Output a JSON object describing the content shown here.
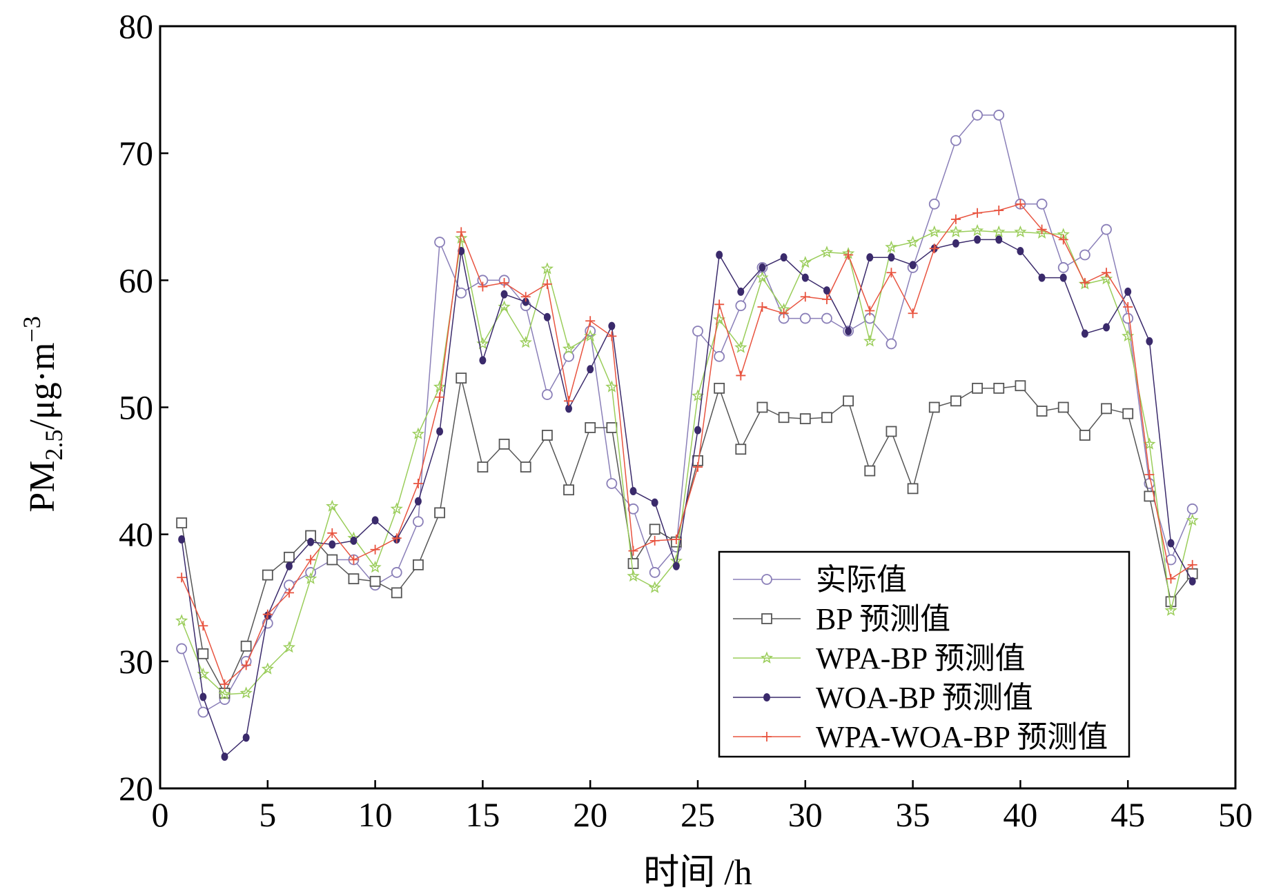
{
  "chart_data": {
    "type": "line",
    "title": "",
    "xlabel": "时间 /h",
    "ylabel": "PM2.5/μg·m−3",
    "ylabel_parts": {
      "main": "PM",
      "sub": "2.5",
      "unit": "/μg·m",
      "sup": "−3"
    },
    "xlim": [
      0,
      50
    ],
    "ylim": [
      20,
      80
    ],
    "x_ticks": [
      0,
      5,
      10,
      15,
      20,
      25,
      30,
      35,
      40,
      45,
      50
    ],
    "y_ticks": [
      20,
      30,
      40,
      50,
      60,
      70,
      80
    ],
    "grid": false,
    "legend_position": "bottom-right",
    "x": [
      1,
      2,
      3,
      4,
      5,
      6,
      7,
      8,
      9,
      10,
      11,
      12,
      13,
      14,
      15,
      16,
      17,
      18,
      19,
      20,
      21,
      22,
      23,
      24,
      25,
      26,
      27,
      28,
      29,
      30,
      31,
      32,
      33,
      34,
      35,
      36,
      37,
      38,
      39,
      40,
      41,
      42,
      43,
      44,
      45,
      46,
      47,
      48
    ],
    "series": [
      {
        "name": "实际值",
        "color": "#8a7fb8",
        "marker": "circle-open",
        "values": [
          31,
          26,
          27,
          30,
          33,
          36,
          37,
          38,
          38,
          36,
          37,
          41,
          63,
          59,
          60,
          60,
          58,
          51,
          54,
          56,
          44,
          42,
          37,
          39,
          56,
          54,
          58,
          61,
          57,
          57,
          57,
          56,
          57,
          55,
          61,
          66,
          71,
          73,
          73,
          66,
          66,
          61,
          62,
          64,
          57,
          44,
          38,
          42
        ]
      },
      {
        "name": "BP 预测值",
        "color": "#555555",
        "marker": "square-open",
        "values": [
          40.9,
          30.6,
          27.5,
          31.2,
          36.8,
          38.2,
          39.9,
          38.0,
          36.5,
          36.3,
          35.4,
          37.6,
          41.7,
          52.3,
          45.3,
          47.1,
          45.3,
          47.8,
          43.5,
          48.4,
          48.4,
          37.7,
          40.4,
          39.4,
          45.8,
          51.5,
          46.7,
          50.0,
          49.2,
          49.1,
          49.2,
          50.5,
          45.0,
          48.1,
          43.6,
          50.0,
          50.5,
          51.5,
          51.5,
          51.7,
          49.7,
          50.0,
          47.8,
          49.9,
          49.5,
          43.0,
          34.7,
          36.9
        ]
      },
      {
        "name": "WPA-BP 预测值",
        "color": "#9acd5a",
        "marker": "star",
        "values": [
          33.2,
          29.0,
          27.4,
          27.5,
          29.4,
          31.1,
          36.5,
          42.2,
          39.7,
          37.4,
          42.0,
          47.9,
          51.6,
          63.3,
          55.0,
          57.9,
          55.1,
          60.9,
          54.6,
          55.6,
          51.6,
          36.7,
          35.8,
          37.9,
          50.9,
          56.9,
          54.7,
          60.2,
          57.7,
          61.4,
          62.2,
          62.1,
          55.2,
          62.6,
          63.0,
          63.8,
          63.8,
          63.9,
          63.8,
          63.8,
          63.7,
          63.6,
          59.7,
          60.1,
          55.6,
          47.1,
          34.0,
          41.1
        ]
      },
      {
        "name": "WOA-BP 预测值",
        "color": "#3a2a6b",
        "marker": "dot-filled",
        "values": [
          39.6,
          27.2,
          22.5,
          24.0,
          33.6,
          37.5,
          39.4,
          39.2,
          39.5,
          41.1,
          39.6,
          42.6,
          48.1,
          62.3,
          53.7,
          58.9,
          58.3,
          57.1,
          49.9,
          53.0,
          56.4,
          43.4,
          42.5,
          37.5,
          48.2,
          62.0,
          59.1,
          61.0,
          61.8,
          60.2,
          59.2,
          56.0,
          61.8,
          61.8,
          61.2,
          62.5,
          62.9,
          63.2,
          63.2,
          62.3,
          60.2,
          60.2,
          55.8,
          56.3,
          59.1,
          55.2,
          39.3,
          36.3
        ]
      },
      {
        "name": "WPA-WOA-BP 预测值",
        "color": "#e8533f",
        "marker": "plus",
        "values": [
          36.6,
          32.8,
          28.2,
          29.7,
          33.7,
          35.4,
          38.0,
          40.1,
          38.0,
          38.8,
          39.7,
          44.0,
          50.8,
          63.8,
          59.5,
          59.8,
          58.7,
          59.7,
          50.5,
          56.8,
          55.6,
          38.7,
          39.5,
          39.6,
          45.3,
          58.1,
          52.5,
          57.9,
          57.4,
          58.7,
          58.5,
          62.0,
          57.6,
          60.6,
          57.4,
          62.5,
          64.8,
          65.3,
          65.5,
          66.0,
          64.0,
          63.2,
          59.8,
          60.6,
          57.9,
          44.7,
          36.5,
          37.6
        ]
      }
    ]
  }
}
